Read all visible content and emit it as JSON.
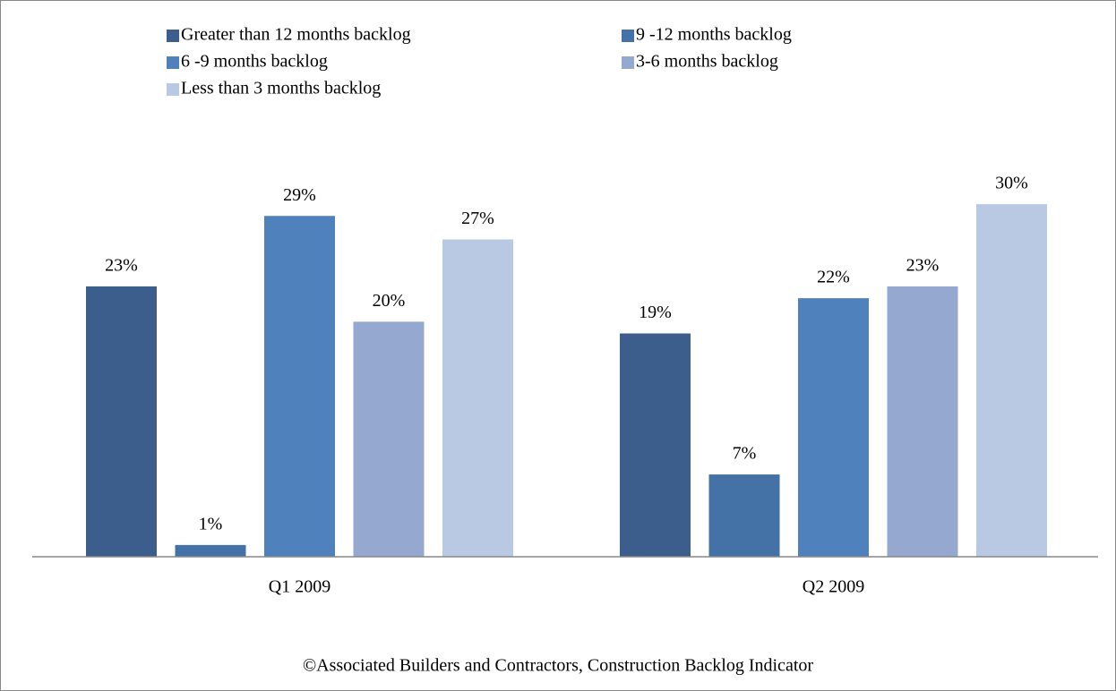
{
  "chart_data": {
    "type": "bar",
    "categories": [
      "Q1 2009",
      "Q2 2009"
    ],
    "series": [
      {
        "name": "Greater than 12 months backlog",
        "color": "#3b5e8c",
        "values": [
          23,
          19
        ],
        "value_labels": [
          "23%",
          "19%"
        ]
      },
      {
        "name": "9 -12 months backlog",
        "color": "#4471a6",
        "values": [
          1,
          7
        ],
        "value_labels": [
          "1%",
          "7%"
        ]
      },
      {
        "name": "6 -9 months backlog",
        "color": "#4f81bd",
        "values": [
          29,
          22
        ],
        "value_labels": [
          "29%",
          "22%"
        ]
      },
      {
        "name": "3-6 months backlog",
        "color": "#95a9d0",
        "values": [
          20,
          23
        ],
        "value_labels": [
          "20%",
          "23%"
        ]
      },
      {
        "name": "Less than 3 months backlog",
        "color": "#b9c9e3",
        "values": [
          27,
          30
        ],
        "value_labels": [
          "27%",
          "30%"
        ]
      }
    ],
    "legend": "top",
    "footnote": "©Associated Builders and Contractors, Construction Backlog Indicator"
  }
}
